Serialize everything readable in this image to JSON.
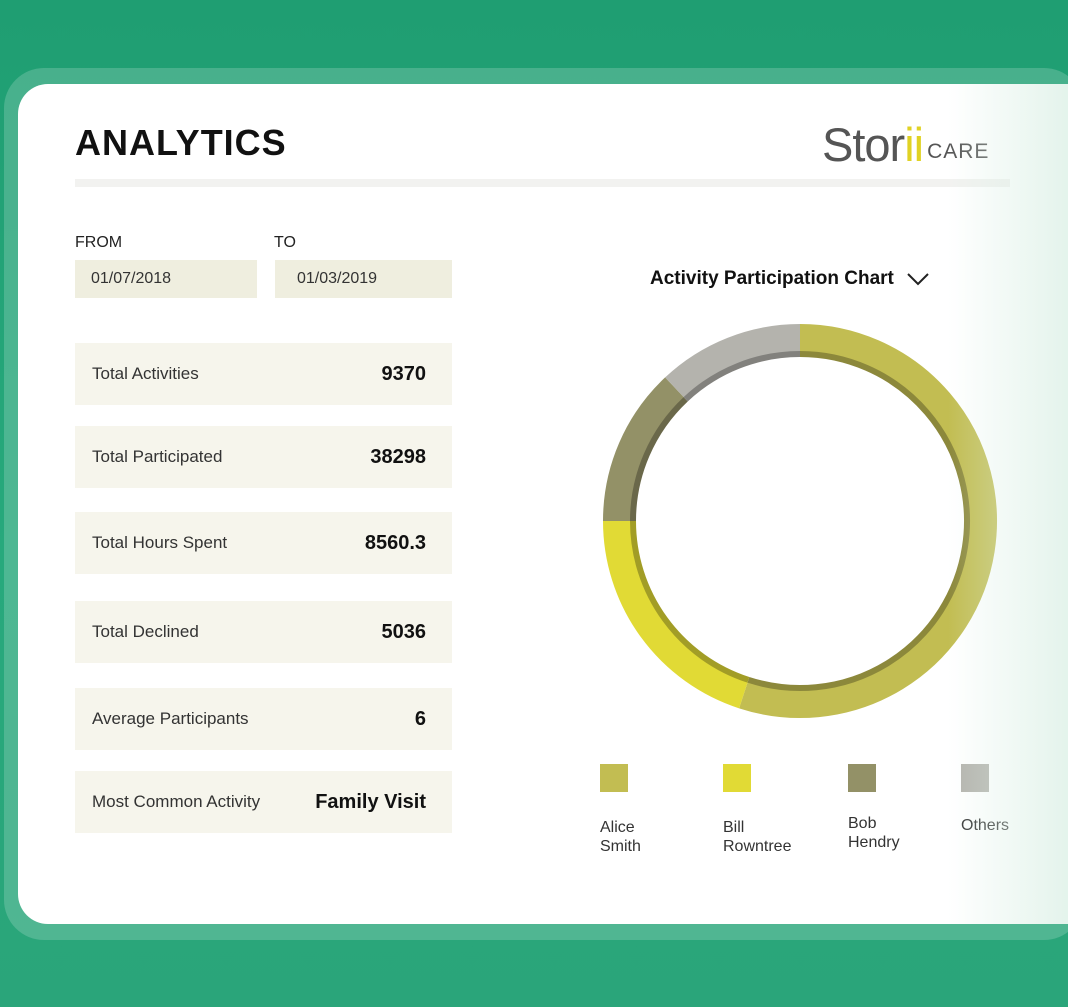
{
  "header": {
    "title": "ANALYTICS",
    "logo_main": "Stor",
    "logo_accent": "ii",
    "logo_suffix": "CARE"
  },
  "date_range": {
    "from_label": "FROM",
    "from_value": "01/07/2018",
    "to_label": "TO",
    "to_value": "01/03/2019"
  },
  "stats": [
    {
      "label": "Total Activities",
      "value": "9370"
    },
    {
      "label": "Total Participated",
      "value": "38298"
    },
    {
      "label": "Total Hours Spent",
      "value": "8560.3"
    },
    {
      "label": "Total Declined",
      "value": "5036"
    },
    {
      "label": "Average Participants",
      "value": "6"
    },
    {
      "label": "Most Common Activity",
      "value": "Family Visit"
    }
  ],
  "chart": {
    "title": "Activity Participation Chart",
    "dropdown_icon": "chevron-down-icon"
  },
  "chart_data": {
    "type": "pie",
    "style": "donut",
    "series": [
      {
        "name_line1": "Alice",
        "name_line2": "Smith",
        "value": 55,
        "color": "#c2bd52"
      },
      {
        "name_line1": "Bill",
        "name_line2": "Rowntree",
        "value": 20,
        "color": "#e1da35"
      },
      {
        "name_line1": "Bob",
        "name_line2": "Hendry",
        "value": 13,
        "color": "#939167"
      },
      {
        "name_line1": "Others",
        "name_line2": "",
        "value": 12,
        "color": "#b4b3ad"
      }
    ]
  }
}
